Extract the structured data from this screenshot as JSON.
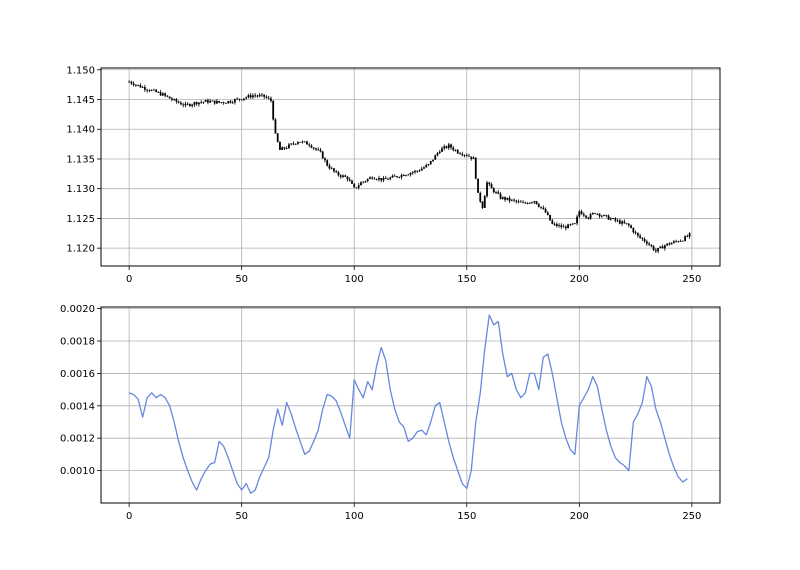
{
  "chart_data": [
    {
      "type": "candlestick",
      "title": "",
      "xlabel": "",
      "ylabel": "",
      "xlim": [
        -12.5,
        262.5
      ],
      "ylim": [
        1.117,
        1.1503
      ],
      "xticks": [
        0,
        50,
        100,
        150,
        200,
        250
      ],
      "xtick_labels": [
        "0",
        "50",
        "100",
        "150",
        "200",
        "250"
      ],
      "yticks": [
        1.12,
        1.125,
        1.13,
        1.135,
        1.14,
        1.145,
        1.15
      ],
      "ytick_labels": [
        "1.120",
        "1.125",
        "1.130",
        "1.135",
        "1.140",
        "1.145",
        "1.150"
      ],
      "grid": true,
      "color": "#000000",
      "n_points": 250,
      "close_anchors": [
        [
          0,
          1.148
        ],
        [
          5,
          1.1472
        ],
        [
          10,
          1.1465
        ],
        [
          15,
          1.1458
        ],
        [
          20,
          1.1448
        ],
        [
          25,
          1.144
        ],
        [
          30,
          1.1445
        ],
        [
          35,
          1.1447
        ],
        [
          40,
          1.1445
        ],
        [
          45,
          1.1447
        ],
        [
          50,
          1.1452
        ],
        [
          55,
          1.1457
        ],
        [
          60,
          1.1455
        ],
        [
          63,
          1.1448
        ],
        [
          65,
          1.139
        ],
        [
          67,
          1.1365
        ],
        [
          70,
          1.137
        ],
        [
          75,
          1.138
        ],
        [
          80,
          1.1375
        ],
        [
          85,
          1.136
        ],
        [
          88,
          1.134
        ],
        [
          92,
          1.1325
        ],
        [
          97,
          1.1318
        ],
        [
          100,
          1.13
        ],
        [
          103,
          1.131
        ],
        [
          108,
          1.132
        ],
        [
          113,
          1.1315
        ],
        [
          118,
          1.132
        ],
        [
          123,
          1.1325
        ],
        [
          128,
          1.133
        ],
        [
          133,
          1.134
        ],
        [
          138,
          1.1365
        ],
        [
          142,
          1.1372
        ],
        [
          146,
          1.1362
        ],
        [
          150,
          1.1357
        ],
        [
          153,
          1.135
        ],
        [
          155,
          1.129
        ],
        [
          157,
          1.127
        ],
        [
          159,
          1.131
        ],
        [
          161,
          1.13
        ],
        [
          165,
          1.1285
        ],
        [
          170,
          1.128
        ],
        [
          175,
          1.1275
        ],
        [
          180,
          1.128
        ],
        [
          185,
          1.126
        ],
        [
          188,
          1.124
        ],
        [
          193,
          1.1235
        ],
        [
          198,
          1.124
        ],
        [
          200,
          1.1262
        ],
        [
          204,
          1.1252
        ],
        [
          207,
          1.126
        ],
        [
          212,
          1.1252
        ],
        [
          217,
          1.1245
        ],
        [
          222,
          1.1238
        ],
        [
          226,
          1.122
        ],
        [
          230,
          1.121
        ],
        [
          234,
          1.1195
        ],
        [
          238,
          1.1205
        ],
        [
          242,
          1.121
        ],
        [
          246,
          1.1215
        ],
        [
          249,
          1.1222
        ]
      ]
    },
    {
      "type": "line",
      "title": "",
      "xlabel": "",
      "ylabel": "",
      "xlim": [
        -12.5,
        262.5
      ],
      "ylim": [
        0.0008,
        0.00201
      ],
      "xticks": [
        0,
        50,
        100,
        150,
        200,
        250
      ],
      "xtick_labels": [
        "0",
        "50",
        "100",
        "150",
        "200",
        "250"
      ],
      "yticks": [
        0.001,
        0.0012,
        0.0014,
        0.0016,
        0.0018,
        0.002
      ],
      "ytick_labels": [
        "0.0010",
        "0.0012",
        "0.0014",
        "0.0016",
        "0.0018",
        "0.0020"
      ],
      "grid": true,
      "color": "#6688dd",
      "points": [
        [
          0,
          0.00148
        ],
        [
          2,
          0.00147
        ],
        [
          4,
          0.00144
        ],
        [
          6,
          0.00133
        ],
        [
          8,
          0.00145
        ],
        [
          10,
          0.00148
        ],
        [
          12,
          0.00145
        ],
        [
          14,
          0.00147
        ],
        [
          16,
          0.00145
        ],
        [
          18,
          0.0014
        ],
        [
          20,
          0.0013
        ],
        [
          22,
          0.00118
        ],
        [
          24,
          0.00108
        ],
        [
          26,
          0.001
        ],
        [
          28,
          0.00093
        ],
        [
          30,
          0.00088
        ],
        [
          32,
          0.00095
        ],
        [
          34,
          0.001
        ],
        [
          36,
          0.00104
        ],
        [
          38,
          0.00105
        ],
        [
          40,
          0.00118
        ],
        [
          42,
          0.00115
        ],
        [
          44,
          0.00108
        ],
        [
          46,
          0.001
        ],
        [
          48,
          0.00092
        ],
        [
          50,
          0.00088
        ],
        [
          52,
          0.00092
        ],
        [
          54,
          0.00086
        ],
        [
          56,
          0.00088
        ],
        [
          58,
          0.00096
        ],
        [
          60,
          0.00102
        ],
        [
          62,
          0.00108
        ],
        [
          64,
          0.00125
        ],
        [
          66,
          0.00138
        ],
        [
          68,
          0.00128
        ],
        [
          70,
          0.00142
        ],
        [
          72,
          0.00135
        ],
        [
          74,
          0.00126
        ],
        [
          76,
          0.00118
        ],
        [
          78,
          0.0011
        ],
        [
          80,
          0.00112
        ],
        [
          82,
          0.00118
        ],
        [
          84,
          0.00125
        ],
        [
          86,
          0.00138
        ],
        [
          88,
          0.00147
        ],
        [
          90,
          0.00146
        ],
        [
          92,
          0.00143
        ],
        [
          94,
          0.00136
        ],
        [
          96,
          0.00128
        ],
        [
          98,
          0.0012
        ],
        [
          100,
          0.00156
        ],
        [
          102,
          0.0015
        ],
        [
          104,
          0.00145
        ],
        [
          106,
          0.00155
        ],
        [
          108,
          0.0015
        ],
        [
          110,
          0.00165
        ],
        [
          112,
          0.00176
        ],
        [
          114,
          0.00168
        ],
        [
          116,
          0.0015
        ],
        [
          118,
          0.00138
        ],
        [
          120,
          0.0013
        ],
        [
          122,
          0.00127
        ],
        [
          124,
          0.00118
        ],
        [
          126,
          0.0012
        ],
        [
          128,
          0.00124
        ],
        [
          130,
          0.00125
        ],
        [
          132,
          0.00122
        ],
        [
          134,
          0.0013
        ],
        [
          136,
          0.0014
        ],
        [
          138,
          0.00142
        ],
        [
          140,
          0.0013
        ],
        [
          142,
          0.00118
        ],
        [
          144,
          0.00108
        ],
        [
          146,
          0.001
        ],
        [
          148,
          0.00092
        ],
        [
          150,
          0.00089
        ],
        [
          152,
          0.001
        ],
        [
          154,
          0.0013
        ],
        [
          156,
          0.00148
        ],
        [
          158,
          0.00175
        ],
        [
          160,
          0.00196
        ],
        [
          162,
          0.0019
        ],
        [
          164,
          0.00192
        ],
        [
          166,
          0.00172
        ],
        [
          168,
          0.00158
        ],
        [
          170,
          0.0016
        ],
        [
          172,
          0.0015
        ],
        [
          174,
          0.00145
        ],
        [
          176,
          0.00148
        ],
        [
          178,
          0.0016
        ],
        [
          180,
          0.0016
        ],
        [
          182,
          0.0015
        ],
        [
          184,
          0.0017
        ],
        [
          186,
          0.00172
        ],
        [
          188,
          0.0016
        ],
        [
          190,
          0.00145
        ],
        [
          192,
          0.0013
        ],
        [
          194,
          0.0012
        ],
        [
          196,
          0.00113
        ],
        [
          198,
          0.0011
        ],
        [
          200,
          0.0014
        ],
        [
          202,
          0.00145
        ],
        [
          204,
          0.0015
        ],
        [
          206,
          0.00158
        ],
        [
          208,
          0.00152
        ],
        [
          210,
          0.00138
        ],
        [
          212,
          0.00125
        ],
        [
          214,
          0.00115
        ],
        [
          216,
          0.00108
        ],
        [
          218,
          0.00105
        ],
        [
          220,
          0.00103
        ],
        [
          222,
          0.001
        ],
        [
          224,
          0.0013
        ],
        [
          226,
          0.00135
        ],
        [
          228,
          0.00142
        ],
        [
          230,
          0.00158
        ],
        [
          232,
          0.00152
        ],
        [
          234,
          0.00138
        ],
        [
          236,
          0.0013
        ],
        [
          238,
          0.0012
        ],
        [
          240,
          0.0011
        ],
        [
          242,
          0.00102
        ],
        [
          244,
          0.00096
        ],
        [
          246,
          0.00093
        ],
        [
          248,
          0.00095
        ]
      ]
    }
  ]
}
